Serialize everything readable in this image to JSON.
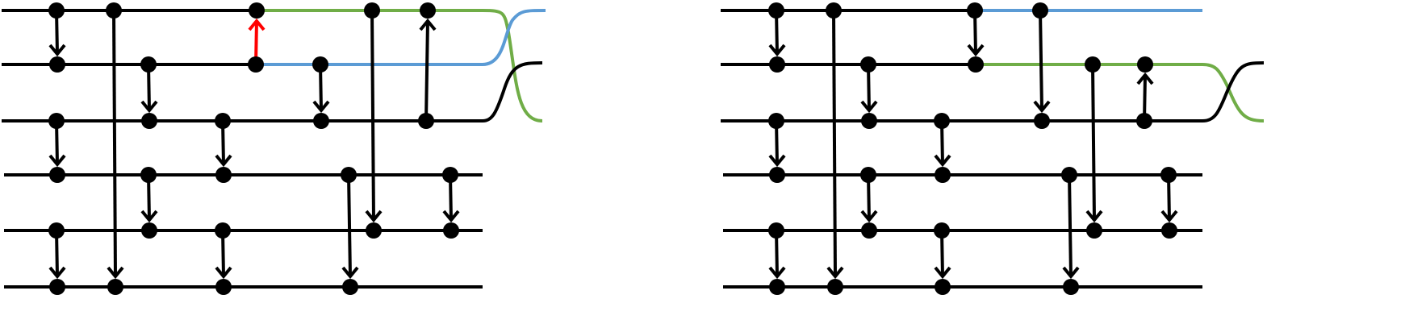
{
  "diagram": {
    "type": "sorting-network",
    "colors": {
      "black": "#000000",
      "green": "#70ad47",
      "blue": "#5b9bd5",
      "red": "#ff0000"
    },
    "panels": [
      {
        "id": "left",
        "wires": [
          {
            "row": 0,
            "segments": [
              {
                "from": 0,
                "to": 5,
                "color": "black"
              },
              {
                "from": 5,
                "to": 8,
                "color": "green"
              }
            ],
            "crossing_to": 1,
            "color": "green"
          },
          {
            "row": 1,
            "segments": [
              {
                "from": 0,
                "to": 5,
                "color": "black"
              },
              {
                "from": 5,
                "to": 8,
                "color": "blue"
              }
            ],
            "crossing_to": 0,
            "color": "blue"
          },
          {
            "row": 2,
            "segments": [
              {
                "from": 0,
                "to": 8,
                "color": "black"
              }
            ],
            "crossing_to": 1,
            "color": "black",
            "end_label_color": "green",
            "end_row": 2
          },
          {
            "row": 3,
            "segments": [
              {
                "from": 0,
                "to": 8,
                "color": "black"
              }
            ]
          },
          {
            "row": 4,
            "segments": [
              {
                "from": 0,
                "to": 8,
                "color": "black"
              }
            ]
          },
          {
            "row": 5,
            "segments": [
              {
                "from": 0,
                "to": 8,
                "color": "black"
              }
            ]
          }
        ],
        "comparators": [
          {
            "col": 0,
            "from": 0,
            "to": 1
          },
          {
            "col": 1,
            "from": 0,
            "to": 5
          },
          {
            "col": 2,
            "from": 1,
            "to": 2
          },
          {
            "col": 0,
            "from": 2,
            "to": 3
          },
          {
            "col": 2,
            "from": 3,
            "to": 4
          },
          {
            "col": 3,
            "from": 2,
            "to": 3
          },
          {
            "col": 0,
            "from": 4,
            "to": 5
          },
          {
            "col": 3,
            "from": 4,
            "to": 5
          },
          {
            "col": 4,
            "from": 1,
            "to": 0,
            "highlight": "red"
          },
          {
            "col": 5,
            "from": 1,
            "to": 2
          },
          {
            "col": 6,
            "from": 3,
            "to": 5
          },
          {
            "col": 7,
            "from": 0,
            "to": 4
          },
          {
            "col": 8,
            "from": 2,
            "to": 0
          },
          {
            "col": 9,
            "from": 3,
            "to": 4
          }
        ]
      },
      {
        "id": "right",
        "comparators": [
          {
            "col": 0,
            "from": 0,
            "to": 1
          },
          {
            "col": 1,
            "from": 0,
            "to": 5
          },
          {
            "col": 2,
            "from": 1,
            "to": 2
          },
          {
            "col": 0,
            "from": 2,
            "to": 3
          },
          {
            "col": 2,
            "from": 3,
            "to": 4
          },
          {
            "col": 3,
            "from": 2,
            "to": 3
          },
          {
            "col": 0,
            "from": 4,
            "to": 5
          },
          {
            "col": 3,
            "from": 4,
            "to": 5
          },
          {
            "col": 4,
            "from": 0,
            "to": 1
          },
          {
            "col": 5,
            "from": 0,
            "to": 2
          },
          {
            "col": 6,
            "from": 3,
            "to": 5
          },
          {
            "col": 7,
            "from": 1,
            "to": 4
          },
          {
            "col": 8,
            "from": 2,
            "to": 1
          },
          {
            "col": 9,
            "from": 3,
            "to": 4
          }
        ]
      }
    ]
  }
}
